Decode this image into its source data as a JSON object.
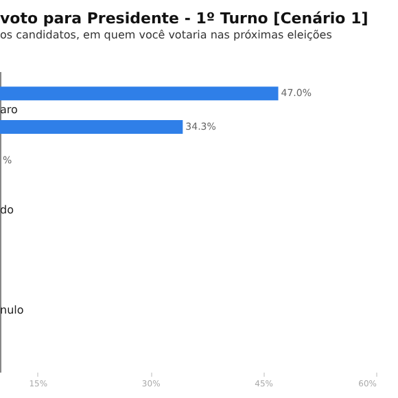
{
  "chart_data": {
    "type": "bar",
    "orientation": "horizontal",
    "title": "voto para Presidente - 1º Turno [Cenário 1]",
    "subtitle": "os candidatos, em quem você votaria nas próximas eleições",
    "categories": [
      null,
      "aro",
      null,
      null,
      "do",
      null,
      null,
      "nulo",
      null
    ],
    "values": [
      47.0,
      34.3,
      null,
      null,
      null,
      null,
      null,
      null,
      null
    ],
    "value_labels": [
      "47.0%",
      "34.3%",
      "%",
      null,
      null,
      null,
      null,
      null,
      null
    ],
    "color": "#2f7fe8",
    "xlim": [
      10,
      60
    ],
    "xticks": [
      {
        "value": 15,
        "label": "15%"
      },
      {
        "value": 30,
        "label": "30%"
      },
      {
        "value": 45,
        "label": "45%"
      },
      {
        "value": 60,
        "label": "60%"
      }
    ],
    "grid": false
  }
}
